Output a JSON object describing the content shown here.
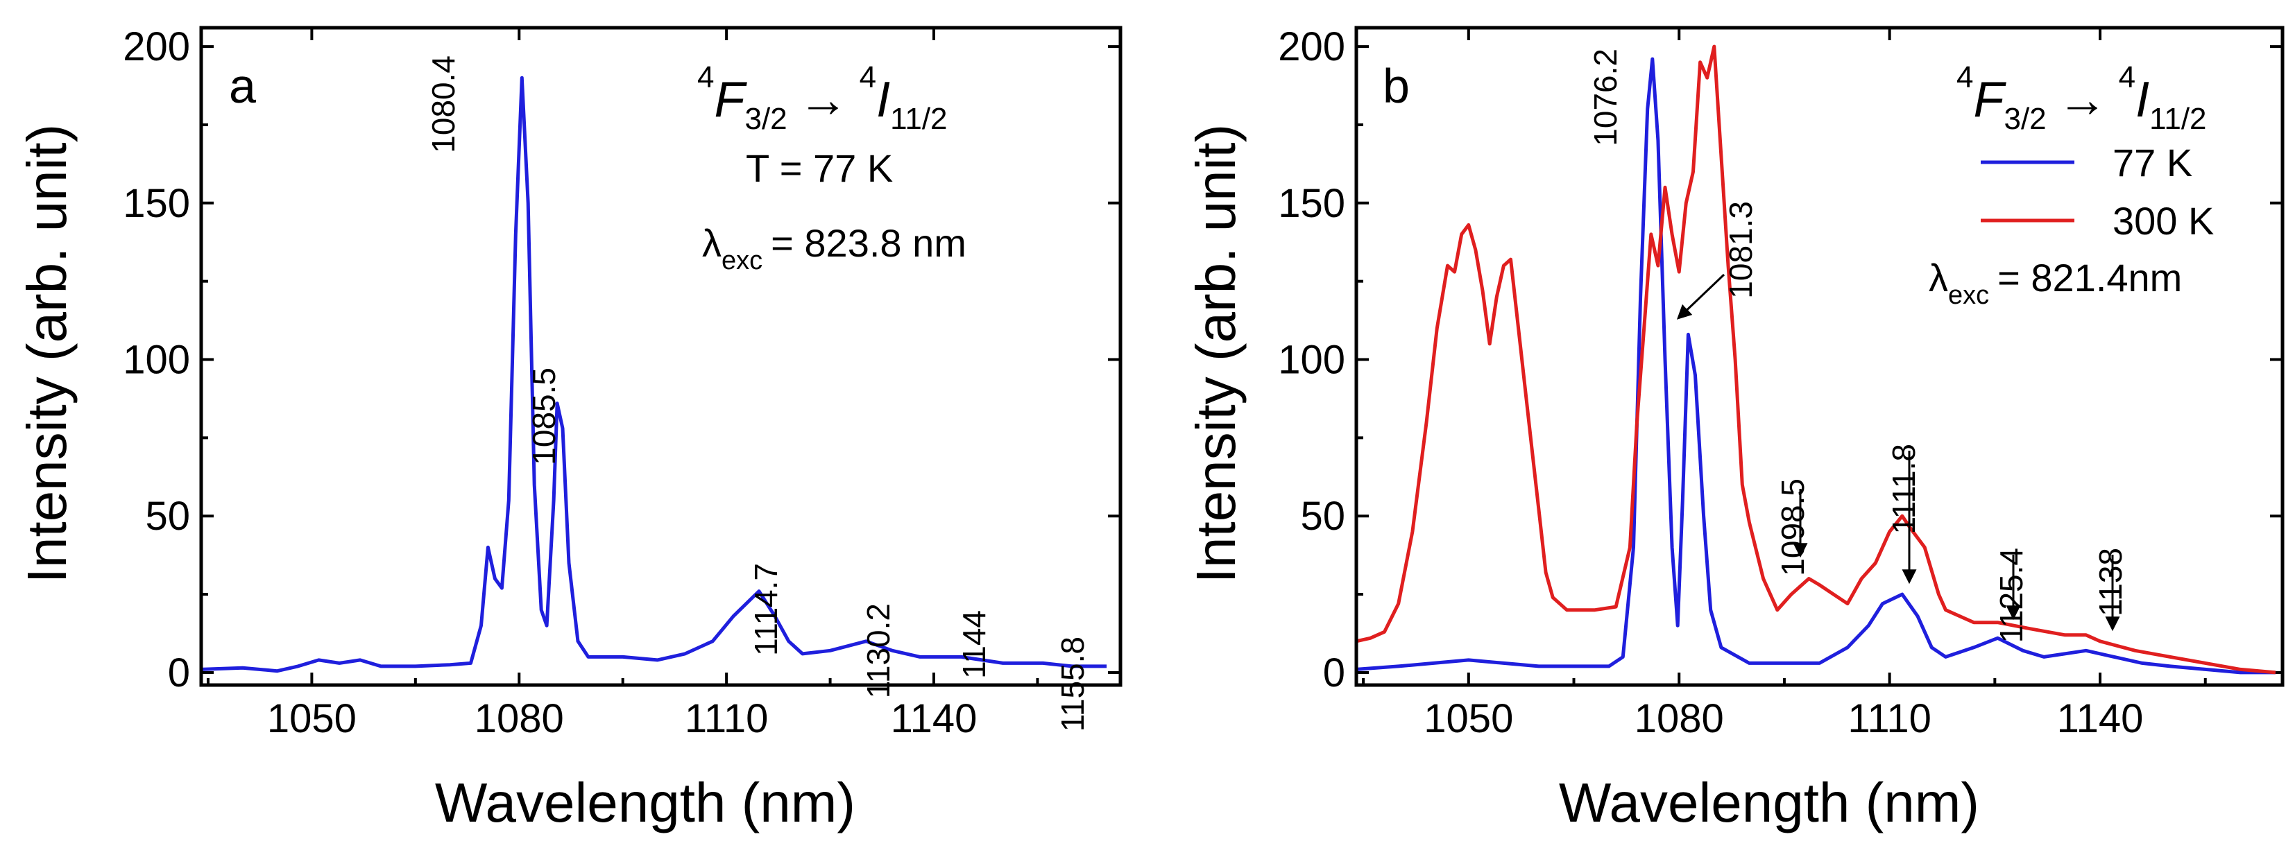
{
  "chart_data": [
    {
      "panel": "a",
      "type": "line",
      "xlabel": "Wavelength (nm)",
      "ylabel": "Intensity (arb. unit)",
      "xlim": [
        1034,
        1167
      ],
      "ylim": [
        -4,
        206
      ],
      "xticks": [
        1050,
        1080,
        1110,
        1140
      ],
      "yticks": [
        0,
        50,
        100,
        150,
        200
      ],
      "transition": {
        "upper_sup": "4",
        "upper": "F",
        "upper_sub": "3/2",
        "arrow": "→",
        "lower_sup": "4",
        "lower": "I",
        "lower_sub": "11/2"
      },
      "info": {
        "temp": "T = 77 K",
        "lambda_symbol": "λ",
        "lambda_sub": "exc",
        "lambda_value": "= 823.8 nm"
      },
      "series": [
        {
          "name": "77 K",
          "color": "#1f1fdd",
          "points": [
            [
              1034,
              1
            ],
            [
              1040,
              1.5
            ],
            [
              1045,
              0.5
            ],
            [
              1048,
              2
            ],
            [
              1051,
              4
            ],
            [
              1054,
              3
            ],
            [
              1057,
              4
            ],
            [
              1060,
              2
            ],
            [
              1065,
              2
            ],
            [
              1070,
              2.5
            ],
            [
              1073,
              3
            ],
            [
              1074.5,
              15
            ],
            [
              1075.5,
              40
            ],
            [
              1076.5,
              30
            ],
            [
              1077.5,
              27
            ],
            [
              1078.5,
              55
            ],
            [
              1079.5,
              140
            ],
            [
              1080.4,
              190
            ],
            [
              1081.3,
              150
            ],
            [
              1082.2,
              60
            ],
            [
              1083.2,
              20
            ],
            [
              1084,
              15
            ],
            [
              1085,
              55
            ],
            [
              1085.5,
              86
            ],
            [
              1086.3,
              78
            ],
            [
              1087.2,
              35
            ],
            [
              1088.5,
              10
            ],
            [
              1090,
              5
            ],
            [
              1095,
              5
            ],
            [
              1100,
              4
            ],
            [
              1104,
              6
            ],
            [
              1108,
              10
            ],
            [
              1111,
              18
            ],
            [
              1114.7,
              26
            ],
            [
              1117,
              18
            ],
            [
              1119,
              10
            ],
            [
              1121,
              6
            ],
            [
              1125,
              7
            ],
            [
              1130.2,
              10
            ],
            [
              1134,
              7
            ],
            [
              1138,
              5
            ],
            [
              1144,
              5
            ],
            [
              1150,
              3
            ],
            [
              1155.8,
              3
            ],
            [
              1160,
              2
            ],
            [
              1165,
              2
            ]
          ]
        }
      ],
      "peak_labels": [
        {
          "x": 1080.4,
          "text": "1080.4"
        },
        {
          "x": 1085.5,
          "text": "1085.5"
        },
        {
          "x": 1114.7,
          "text": "1114.7"
        },
        {
          "x": 1130.2,
          "text": "1130.2"
        },
        {
          "x": 1144,
          "text": "1144"
        },
        {
          "x": 1155.8,
          "text": "1155.8"
        }
      ]
    },
    {
      "panel": "b",
      "type": "line",
      "xlabel": "Wavelength (nm)",
      "ylabel": "Intensity (arb. unit)",
      "xlim": [
        1034,
        1166
      ],
      "ylim": [
        -4,
        206
      ],
      "xticks": [
        1050,
        1080,
        1110,
        1140
      ],
      "yticks": [
        0,
        50,
        100,
        150,
        200
      ],
      "transition": {
        "upper_sup": "4",
        "upper": "F",
        "upper_sub": "3/2",
        "arrow": "→",
        "lower_sup": "4",
        "lower": "I",
        "lower_sub": "11/2"
      },
      "info": {
        "lambda_symbol": "λ",
        "lambda_sub": "exc",
        "lambda_value": "= 821.4nm"
      },
      "legend": [
        {
          "label": "77 K",
          "color": "#1f1fdd"
        },
        {
          "label": "300 K",
          "color": "#e01f1f"
        }
      ],
      "series": [
        {
          "name": "77 K",
          "color": "#1f1fdd",
          "points": [
            [
              1034,
              1
            ],
            [
              1040,
              2
            ],
            [
              1045,
              3
            ],
            [
              1050,
              4
            ],
            [
              1055,
              3
            ],
            [
              1060,
              2
            ],
            [
              1065,
              2
            ],
            [
              1070,
              2
            ],
            [
              1072,
              5
            ],
            [
              1073.5,
              40
            ],
            [
              1074.5,
              120
            ],
            [
              1075.5,
              180
            ],
            [
              1076.2,
              196
            ],
            [
              1077,
              170
            ],
            [
              1078,
              100
            ],
            [
              1079,
              40
            ],
            [
              1079.8,
              15
            ],
            [
              1080.5,
              55
            ],
            [
              1081.3,
              108
            ],
            [
              1082.3,
              95
            ],
            [
              1083.5,
              50
            ],
            [
              1084.5,
              20
            ],
            [
              1086,
              8
            ],
            [
              1090,
              3
            ],
            [
              1095,
              3
            ],
            [
              1100,
              3
            ],
            [
              1104,
              8
            ],
            [
              1107,
              15
            ],
            [
              1109,
              22
            ],
            [
              1111.8,
              25
            ],
            [
              1114,
              18
            ],
            [
              1116,
              8
            ],
            [
              1118,
              5
            ],
            [
              1122,
              8
            ],
            [
              1125.4,
              11
            ],
            [
              1129,
              7
            ],
            [
              1132,
              5
            ],
            [
              1138,
              7
            ],
            [
              1142,
              5
            ],
            [
              1146,
              3
            ],
            [
              1150,
              2
            ],
            [
              1155,
              1
            ],
            [
              1160,
              0
            ],
            [
              1165,
              0
            ]
          ]
        },
        {
          "name": "300 K",
          "color": "#e01f1f",
          "points": [
            [
              1034,
              10
            ],
            [
              1036,
              11
            ],
            [
              1038,
              13
            ],
            [
              1040,
              22
            ],
            [
              1042,
              45
            ],
            [
              1044,
              80
            ],
            [
              1045.5,
              110
            ],
            [
              1047,
              130
            ],
            [
              1048,
              128
            ],
            [
              1049,
              140
            ],
            [
              1050,
              143
            ],
            [
              1051,
              135
            ],
            [
              1052,
              122
            ],
            [
              1053,
              105
            ],
            [
              1054,
              120
            ],
            [
              1055,
              130
            ],
            [
              1056,
              132
            ],
            [
              1057,
              112
            ],
            [
              1058,
              92
            ],
            [
              1059,
              72
            ],
            [
              1060,
              52
            ],
            [
              1061,
              32
            ],
            [
              1062,
              24
            ],
            [
              1064,
              20
            ],
            [
              1068,
              20
            ],
            [
              1071,
              21
            ],
            [
              1073,
              40
            ],
            [
              1074,
              80
            ],
            [
              1075,
              110
            ],
            [
              1076,
              140
            ],
            [
              1077,
              130
            ],
            [
              1078,
              155
            ],
            [
              1079,
              140
            ],
            [
              1080,
              128
            ],
            [
              1081,
              150
            ],
            [
              1082,
              160
            ],
            [
              1083,
              195
            ],
            [
              1084,
              190
            ],
            [
              1085,
              200
            ],
            [
              1086,
              165
            ],
            [
              1087,
              130
            ],
            [
              1088,
              100
            ],
            [
              1089,
              60
            ],
            [
              1090,
              48
            ],
            [
              1092,
              30
            ],
            [
              1094,
              20
            ],
            [
              1096,
              25
            ],
            [
              1098.5,
              30
            ],
            [
              1100,
              28
            ],
            [
              1102,
              25
            ],
            [
              1104,
              22
            ],
            [
              1106,
              30
            ],
            [
              1108,
              35
            ],
            [
              1110,
              45
            ],
            [
              1111.8,
              50
            ],
            [
              1113,
              46
            ],
            [
              1115,
              40
            ],
            [
              1117,
              25
            ],
            [
              1118,
              20
            ],
            [
              1122,
              16
            ],
            [
              1125.4,
              16
            ],
            [
              1130,
              14
            ],
            [
              1135,
              12
            ],
            [
              1138,
              12
            ],
            [
              1140,
              10
            ],
            [
              1145,
              7
            ],
            [
              1150,
              5
            ],
            [
              1155,
              3
            ],
            [
              1160,
              1
            ],
            [
              1165,
              0
            ]
          ]
        }
      ],
      "peak_labels": [
        {
          "x": 1076.2,
          "text": "1076.2"
        },
        {
          "x": 1081.3,
          "text": "1081.3"
        },
        {
          "x": 1098.5,
          "text": "1098.5"
        },
        {
          "x": 1111.8,
          "text": "1111.8"
        },
        {
          "x": 1125.4,
          "text": "1125.4"
        },
        {
          "x": 1138,
          "text": "1138"
        }
      ]
    }
  ]
}
